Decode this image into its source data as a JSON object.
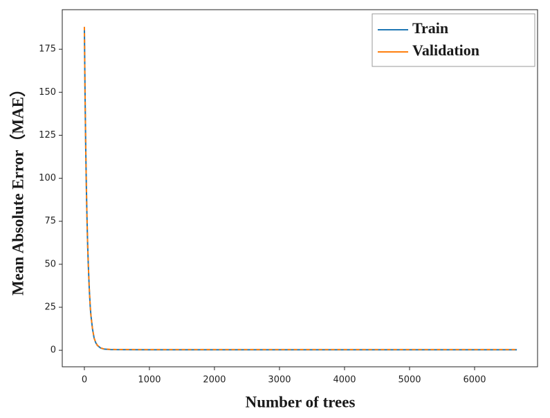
{
  "chart_data": {
    "type": "line",
    "x_label": "Number of trees",
    "y_label": "Mean Absolute Error（MAE）",
    "x": [
      0,
      10,
      20,
      30,
      40,
      50,
      60,
      75,
      90,
      100,
      125,
      150,
      175,
      200,
      250,
      300,
      400,
      600,
      1000,
      2000,
      3000,
      4000,
      5000,
      6000,
      6650
    ],
    "series": [
      {
        "name": "Train",
        "color": "#1f77b4",
        "dash": false,
        "values": [
          188,
          150,
          120,
          96,
          77,
          62,
          50,
          36,
          25.5,
          20.5,
          12.4,
          7.0,
          4.4,
          2.8,
          1.3,
          0.7,
          0.4,
          0.35,
          0.3,
          0.3,
          0.3,
          0.3,
          0.3,
          0.3,
          0.3
        ]
      },
      {
        "name": "Validation",
        "color": "#ff7f0e",
        "dash": true,
        "values": [
          188,
          150,
          120,
          96,
          77,
          62,
          50,
          36,
          25.6,
          20.6,
          12.5,
          7.1,
          4.5,
          2.9,
          1.4,
          0.8,
          0.5,
          0.45,
          0.4,
          0.4,
          0.4,
          0.4,
          0.4,
          0.4,
          0.4
        ]
      }
    ],
    "xlim": [
      -340,
      6968
    ],
    "ylim": [
      -9.6,
      198
    ],
    "xticks": [
      0,
      1000,
      2000,
      3000,
      4000,
      5000,
      6000
    ],
    "yticks": [
      0,
      25,
      50,
      75,
      100,
      125,
      150,
      175
    ],
    "legend": "upper right"
  }
}
